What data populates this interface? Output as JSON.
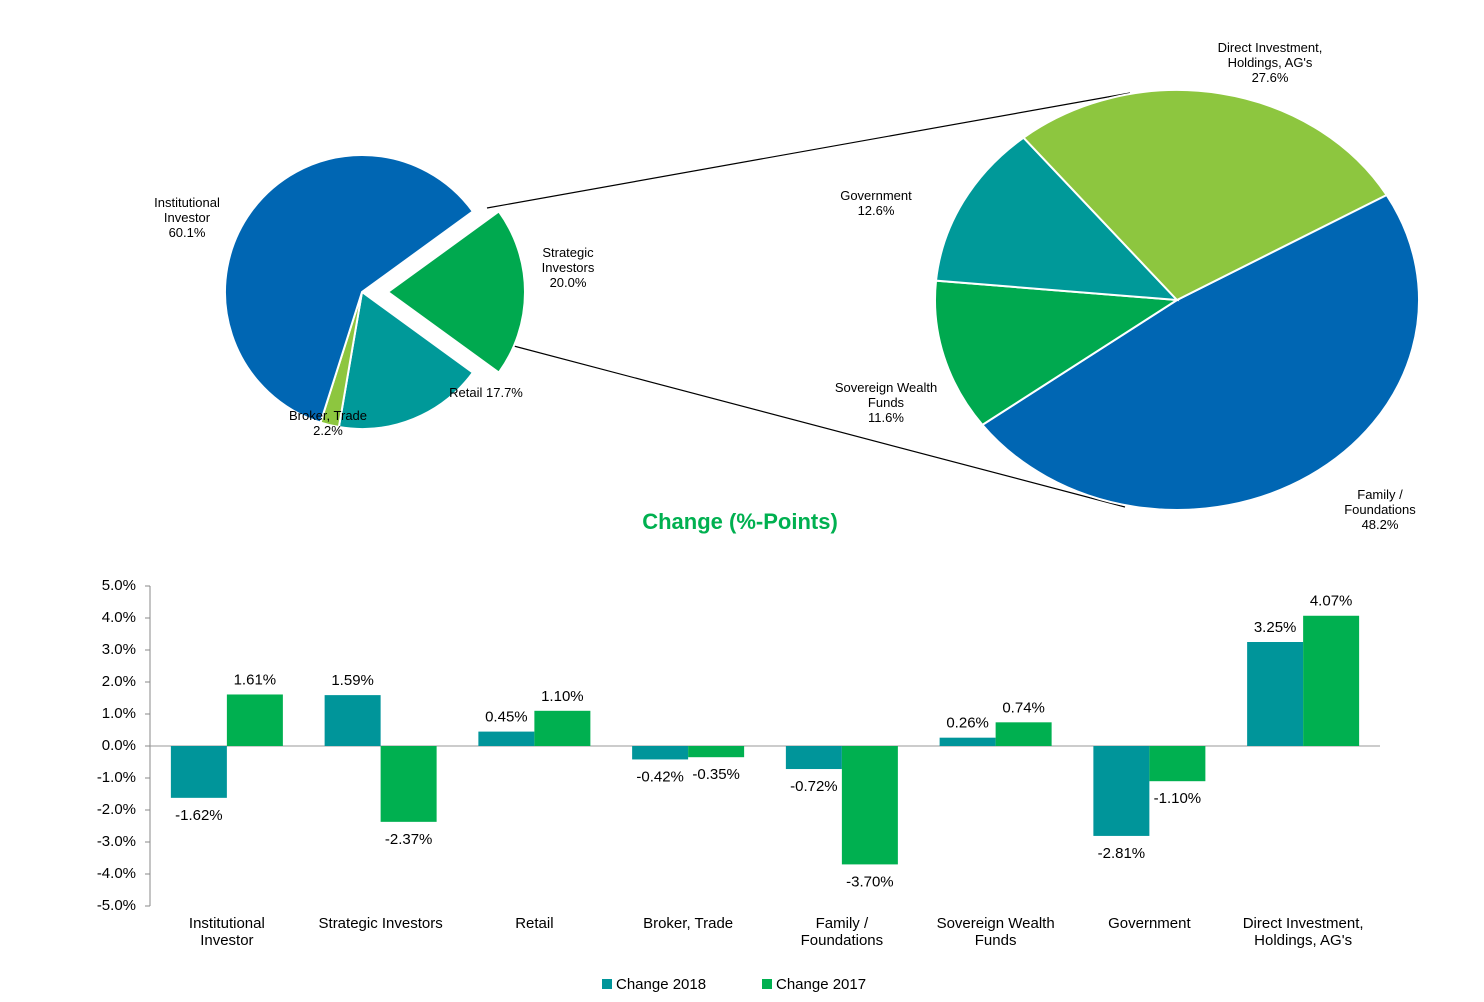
{
  "chart_data": [
    {
      "type": "pie",
      "categories": [
        "Strategic Investors",
        "Retail",
        "Broker, Trade",
        "Institutional Investor"
      ],
      "values": [
        20.0,
        17.7,
        2.2,
        60.1
      ],
      "value_labels": [
        "20.0%",
        "17.7%",
        "2.2%",
        "60.1%"
      ],
      "colors": [
        "#00A94F",
        "#009999",
        "#8DC63F",
        "#0066B3"
      ]
    },
    {
      "type": "pie",
      "categories": [
        "Family / Foundations",
        "Sovereign Wealth Funds",
        "Government",
        "Direct Investment, Holdings, AG's"
      ],
      "values": [
        48.2,
        11.6,
        12.6,
        27.6
      ],
      "value_labels": [
        "48.2%",
        "11.6%",
        "12.6%",
        "27.6%"
      ],
      "colors": [
        "#0066B3",
        "#00A94F",
        "#009999",
        "#8DC63F"
      ]
    },
    {
      "type": "bar",
      "title": "Change (%-Points)",
      "categories": [
        "Institutional Investor",
        "Strategic Investors",
        "Retail",
        "Broker, Trade",
        "Family / Foundations",
        "Sovereign Wealth Funds",
        "Government",
        "Direct Investment, Holdings, AG's"
      ],
      "series": [
        {
          "name": "Change 2018",
          "color": "#00959A",
          "values": [
            -1.62,
            1.59,
            0.45,
            -0.42,
            -0.72,
            0.26,
            -2.81,
            3.25
          ],
          "value_labels": [
            "-1.62%",
            "1.59%",
            "0.45%",
            "-0.42%",
            "-0.72%",
            "0.26%",
            "-2.81%",
            "3.25%"
          ]
        },
        {
          "name": "Change 2017",
          "color": "#00B050",
          "values": [
            1.61,
            -2.37,
            1.1,
            -0.35,
            -3.7,
            0.74,
            -1.1,
            4.07
          ],
          "value_labels": [
            "1.61%",
            "-2.37%",
            "1.10%",
            "-0.35%",
            "-3.70%",
            "0.74%",
            "-1.10%",
            "4.07%"
          ]
        }
      ],
      "ylim": [
        -5,
        5
      ],
      "yticks": [
        {
          "value": -5,
          "label": "-5.0%"
        },
        {
          "value": -4,
          "label": "-4.0%"
        },
        {
          "value": -3,
          "label": "-3.0%"
        },
        {
          "value": -2,
          "label": "-2.0%"
        },
        {
          "value": -1,
          "label": "-1.0%"
        },
        {
          "value": 0,
          "label": "0.0%"
        },
        {
          "value": 1,
          "label": "1.0%"
        },
        {
          "value": 2,
          "label": "2.0%"
        },
        {
          "value": 3,
          "label": "3.0%"
        },
        {
          "value": 4,
          "label": "4.0%"
        },
        {
          "value": 5,
          "label": "5.0%"
        }
      ],
      "legend": "bottom"
    }
  ]
}
